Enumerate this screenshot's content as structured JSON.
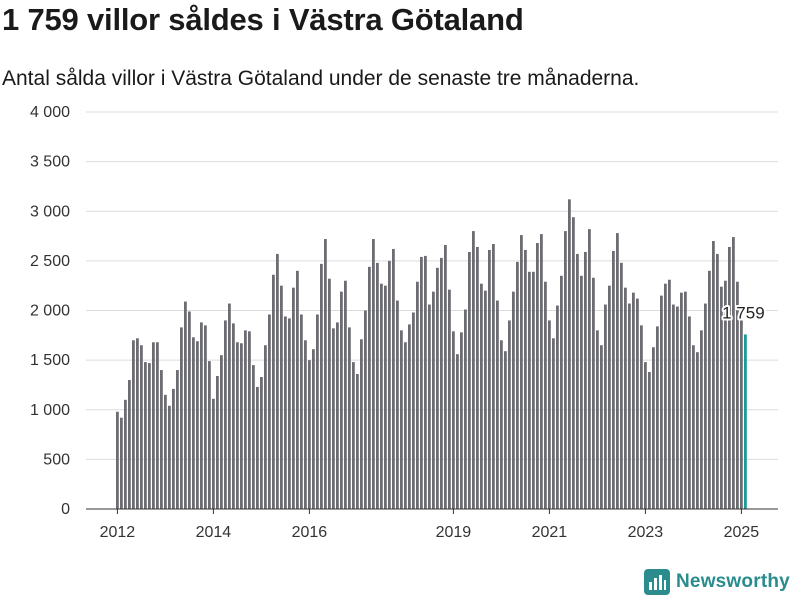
{
  "title": "1 759 villor såldes i Västra Götaland",
  "subtitle": "Antal sålda villor i Västra Götaland under de senaste tre månaderna.",
  "brand": {
    "name": "Newsworthy",
    "icon": "newsworthy-logo-icon"
  },
  "colors": {
    "bar": "#6c6c73",
    "highlight": "#1a9a96",
    "grid": "#dcdcdc",
    "brand": "#2a8c8c"
  },
  "chart_data": {
    "type": "bar",
    "title": "1 759 villor såldes i Västra Götaland",
    "xlabel": "",
    "ylabel": "",
    "ylim": [
      0,
      4000
    ],
    "yticks": [
      0,
      500,
      1000,
      1500,
      2000,
      2500,
      3000,
      3500,
      4000
    ],
    "ytick_labels": [
      "0",
      "500",
      "1 000",
      "1 500",
      "2 000",
      "2 500",
      "3 000",
      "3 500",
      "4 000"
    ],
    "xticks": [
      {
        "label": "2012",
        "date": "2012-01"
      },
      {
        "label": "2014",
        "date": "2014-01"
      },
      {
        "label": "2016",
        "date": "2016-01"
      },
      {
        "label": "2019",
        "date": "2019-01"
      },
      {
        "label": "2021",
        "date": "2021-01"
      },
      {
        "label": "2023",
        "date": "2023-01"
      },
      {
        "label": "2025",
        "date": "2025-01"
      }
    ],
    "grid": true,
    "legend": "none",
    "highlight_label": "1 759",
    "highlight_index": 157,
    "x": [
      "2012-01",
      "2012-02",
      "2012-03",
      "2012-04",
      "2012-05",
      "2012-06",
      "2012-07",
      "2012-08",
      "2012-09",
      "2012-10",
      "2012-11",
      "2012-12",
      "2013-01",
      "2013-02",
      "2013-03",
      "2013-04",
      "2013-05",
      "2013-06",
      "2013-07",
      "2013-08",
      "2013-09",
      "2013-10",
      "2013-11",
      "2013-12",
      "2014-01",
      "2014-02",
      "2014-03",
      "2014-04",
      "2014-05",
      "2014-06",
      "2014-07",
      "2014-08",
      "2014-09",
      "2014-10",
      "2014-11",
      "2014-12",
      "2015-01",
      "2015-02",
      "2015-03",
      "2015-04",
      "2015-05",
      "2015-06",
      "2015-07",
      "2015-08",
      "2015-09",
      "2015-10",
      "2015-11",
      "2015-12",
      "2016-01",
      "2016-02",
      "2016-03",
      "2016-04",
      "2016-05",
      "2016-06",
      "2016-07",
      "2016-08",
      "2016-09",
      "2016-10",
      "2016-11",
      "2016-12",
      "2017-01",
      "2017-02",
      "2017-03",
      "2017-04",
      "2017-05",
      "2017-06",
      "2017-07",
      "2017-08",
      "2017-09",
      "2017-10",
      "2017-11",
      "2017-12",
      "2018-01",
      "2018-02",
      "2018-03",
      "2018-04",
      "2018-05",
      "2018-06",
      "2018-07",
      "2018-08",
      "2018-09",
      "2018-10",
      "2018-11",
      "2018-12",
      "2019-01",
      "2019-02",
      "2019-03",
      "2019-04",
      "2019-05",
      "2019-06",
      "2019-07",
      "2019-08",
      "2019-09",
      "2019-10",
      "2019-11",
      "2019-12",
      "2020-01",
      "2020-02",
      "2020-03",
      "2020-04",
      "2020-05",
      "2020-06",
      "2020-07",
      "2020-08",
      "2020-09",
      "2020-10",
      "2020-11",
      "2020-12",
      "2021-01",
      "2021-02",
      "2021-03",
      "2021-04",
      "2021-05",
      "2021-06",
      "2021-07",
      "2021-08",
      "2021-09",
      "2021-10",
      "2021-11",
      "2021-12",
      "2022-01",
      "2022-02",
      "2022-03",
      "2022-04",
      "2022-05",
      "2022-06",
      "2022-07",
      "2022-08",
      "2022-09",
      "2022-10",
      "2022-11",
      "2022-12",
      "2023-01",
      "2023-02",
      "2023-03",
      "2023-04",
      "2023-05",
      "2023-06",
      "2023-07",
      "2023-08",
      "2023-09",
      "2023-10",
      "2023-11",
      "2023-12",
      "2024-01",
      "2024-02",
      "2024-03",
      "2024-04",
      "2024-05",
      "2024-06",
      "2024-07",
      "2024-08",
      "2024-09",
      "2024-10",
      "2024-11",
      "2024-12",
      "2025-01",
      "2025-02"
    ],
    "values": [
      980,
      920,
      1100,
      1300,
      1700,
      1720,
      1650,
      1480,
      1470,
      1680,
      1680,
      1400,
      1150,
      1040,
      1210,
      1400,
      1830,
      2090,
      1990,
      1730,
      1690,
      1880,
      1850,
      1490,
      1110,
      1340,
      1550,
      1900,
      2070,
      1870,
      1680,
      1670,
      1800,
      1790,
      1450,
      1230,
      1330,
      1650,
      1960,
      2360,
      2570,
      2250,
      1940,
      1920,
      2230,
      2400,
      1960,
      1700,
      1500,
      1610,
      1960,
      2470,
      2720,
      2320,
      1820,
      1880,
      2190,
      2300,
      1830,
      1480,
      1360,
      1710,
      2000,
      2440,
      2720,
      2480,
      2270,
      2250,
      2500,
      2620,
      2100,
      1800,
      1680,
      1860,
      1980,
      2290,
      2540,
      2550,
      2060,
      2190,
      2430,
      2530,
      2660,
      2210,
      1790,
      1560,
      1780,
      2010,
      2590,
      2800,
      2640,
      2270,
      2200,
      2610,
      2670,
      2100,
      1700,
      1590,
      1900,
      2190,
      2490,
      2760,
      2610,
      2390,
      2390,
      2680,
      2770,
      2290,
      1900,
      1720,
      2050,
      2350,
      2800,
      3120,
      2940,
      2570,
      2350,
      2590,
      2820,
      2330,
      1800,
      1650,
      2060,
      2250,
      2600,
      2780,
      2480,
      2230,
      2070,
      2180,
      2120,
      1850,
      1480,
      1380,
      1630,
      1840,
      2150,
      2270,
      2310,
      2060,
      2040,
      2180,
      2190,
      1940,
      1650,
      1580,
      1800,
      2070,
      2400,
      2700,
      2570,
      2240,
      2300,
      2640,
      2740,
      2290,
      1900,
      1759
    ]
  }
}
